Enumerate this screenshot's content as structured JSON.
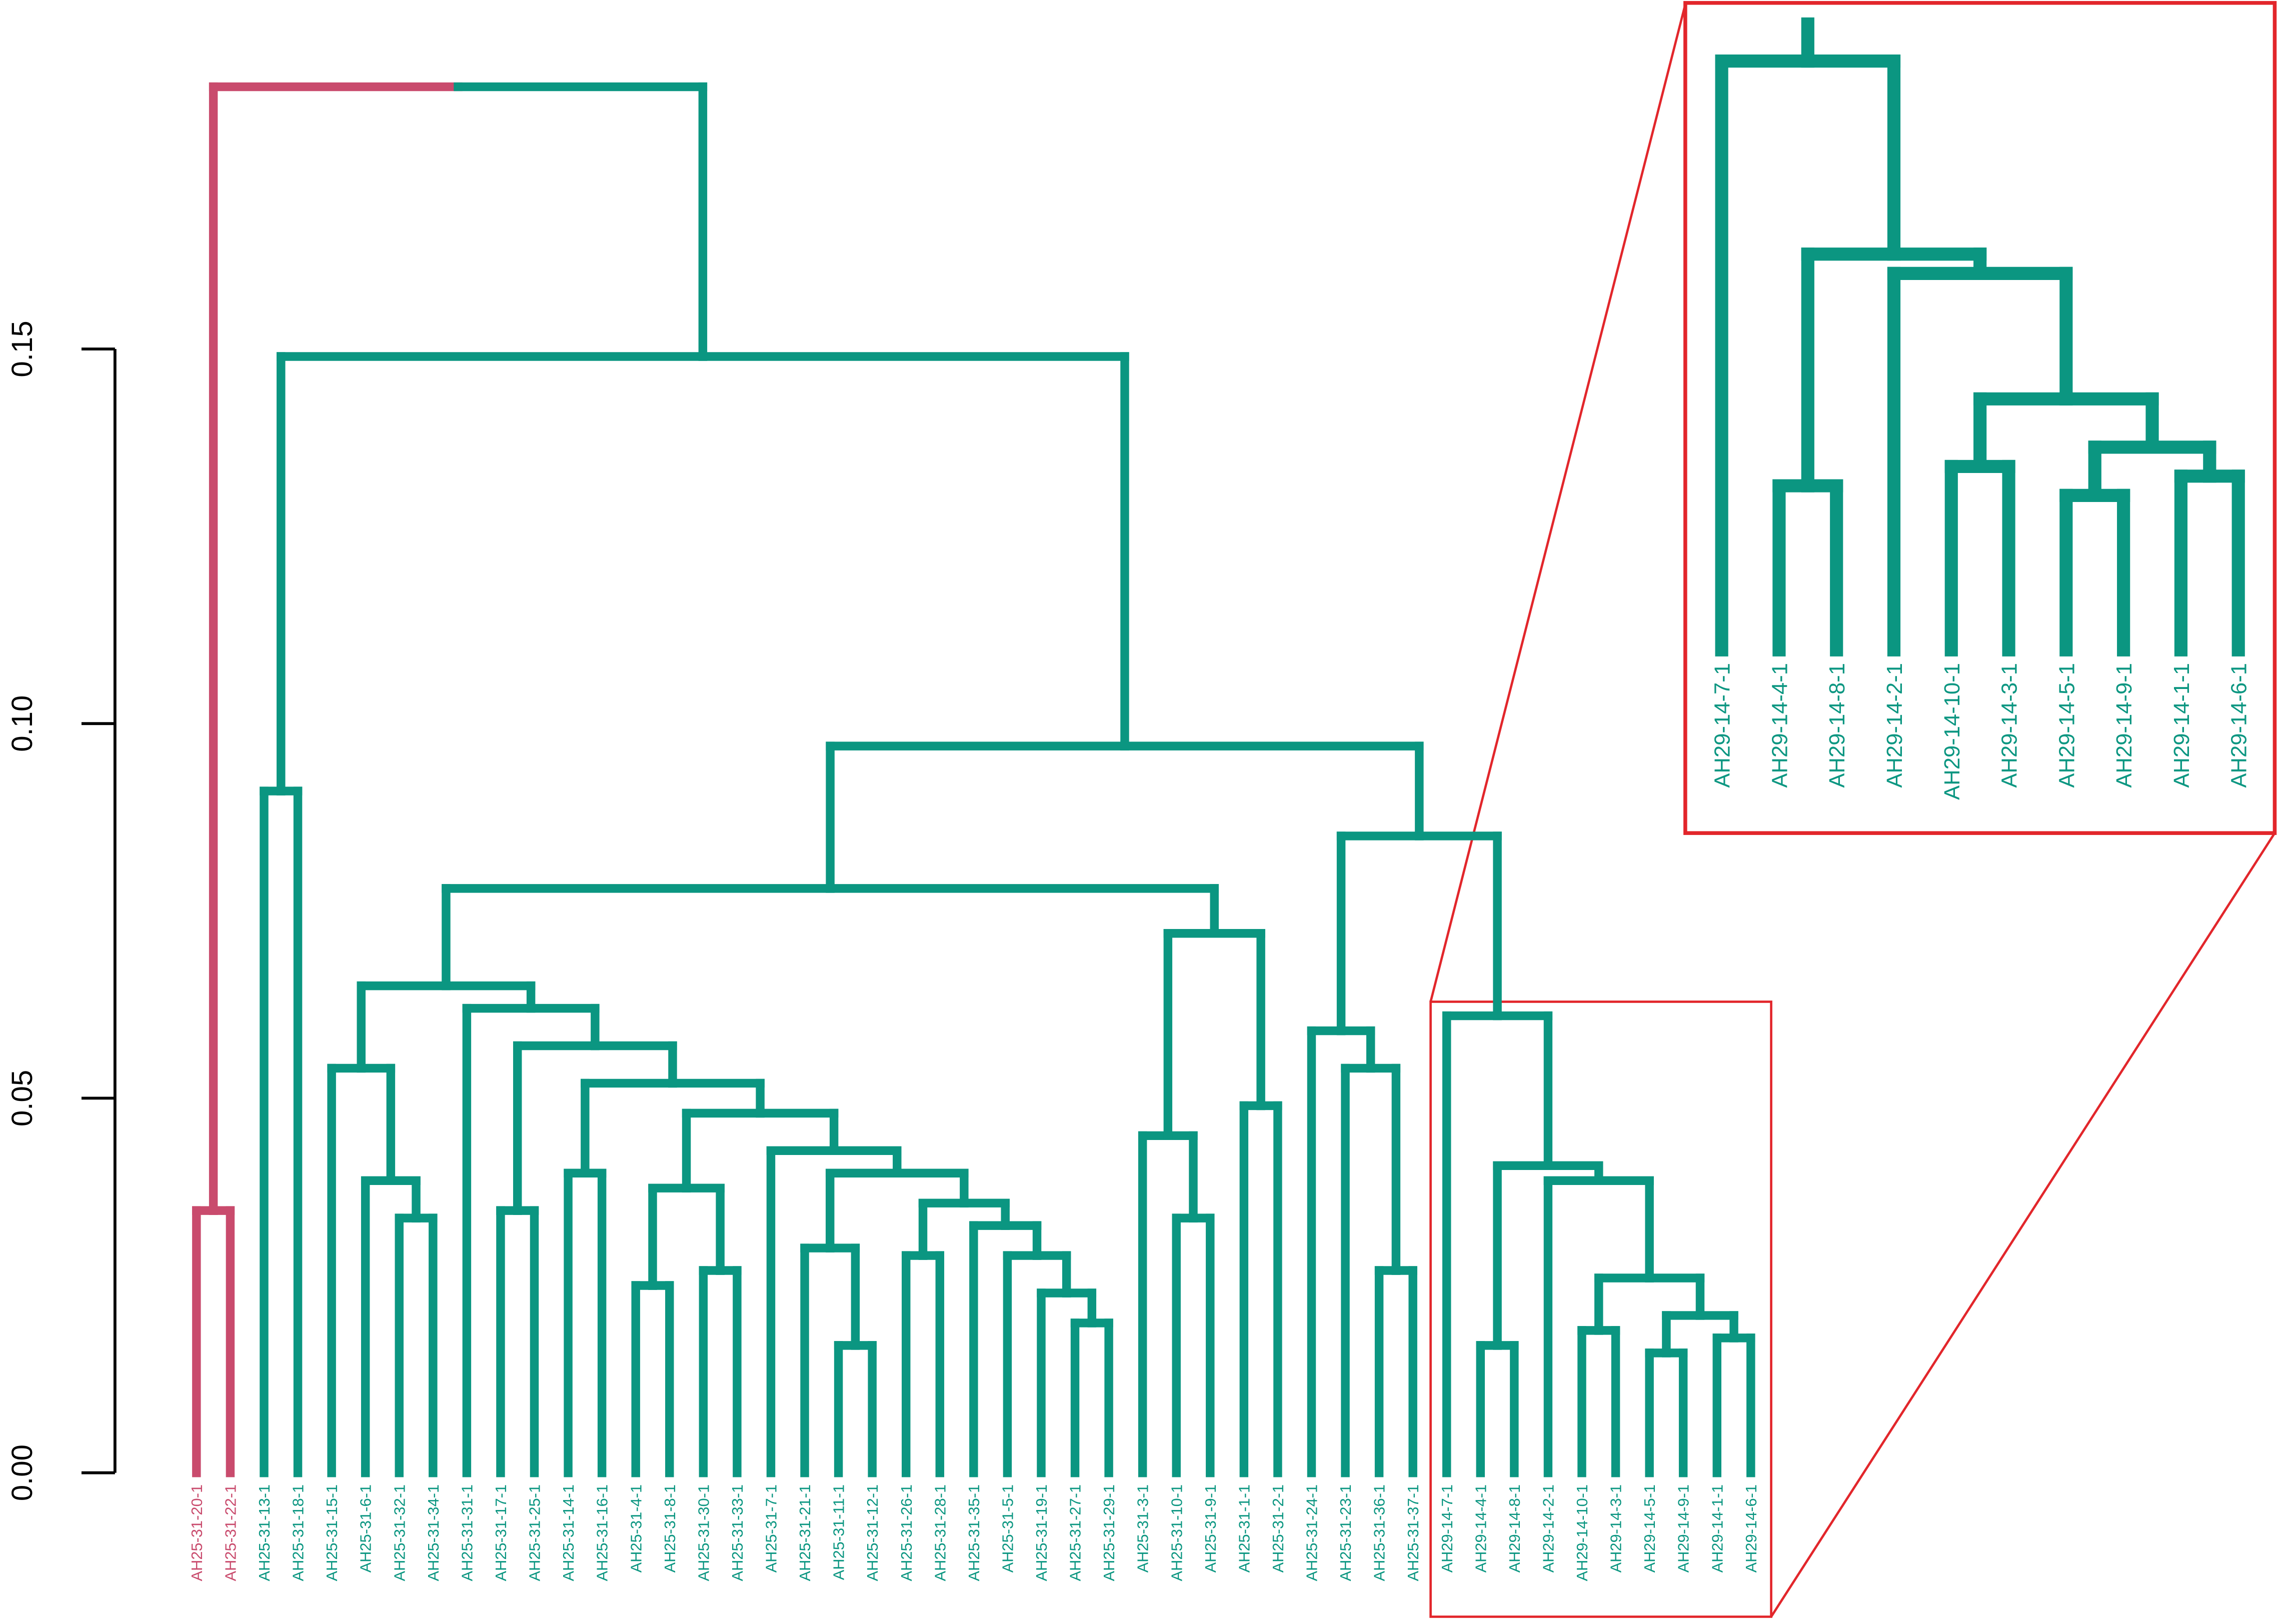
{
  "colors": {
    "cluster_1": "#c94b6d",
    "cluster_2": "#0b9681",
    "highlight": "#e2262b",
    "axis": "#000000"
  },
  "chart_data": {
    "type": "dendrogram",
    "y_axis": {
      "ticks": [
        0,
        0.05,
        0.1,
        0.15
      ],
      "tick_labels": [
        "0.00",
        "0.05",
        "0.10",
        "0.15"
      ],
      "range": [
        0,
        0.15
      ]
    },
    "tree": {
      "h": 0.185,
      "children": [
        {
          "h": 0.035,
          "cluster": 1,
          "children": [
            "AH25-31-20-1",
            "AH25-31-22-1"
          ]
        },
        {
          "h": 0.149,
          "cluster": 2,
          "children": [
            {
              "h": 0.091,
              "children": [
                "AH25-31-13-1",
                "AH25-31-18-1"
              ]
            },
            {
              "h": 0.097,
              "children": [
                {
                  "h": 0.078,
                  "children": [
                    {
                      "h": 0.065,
                      "children": [
                        {
                          "h": 0.054,
                          "children": [
                            "AH25-31-15-1",
                            {
                              "h": 0.039,
                              "children": [
                                "AH25-31-6-1",
                                {
                                  "h": 0.034,
                                  "children": [
                                    "AH25-31-32-1",
                                    "AH25-31-34-1"
                                  ]
                                }
                              ]
                            }
                          ]
                        },
                        {
                          "h": 0.062,
                          "children": [
                            "AH25-31-31-1",
                            {
                              "h": 0.057,
                              "children": [
                                {
                                  "h": 0.035,
                                  "children": [
                                    "AH25-31-17-1",
                                    "AH25-31-25-1"
                                  ]
                                },
                                {
                                  "h": 0.052,
                                  "children": [
                                    {
                                      "h": 0.04,
                                      "children": [
                                        "AH25-31-14-1",
                                        "AH25-31-16-1"
                                      ]
                                    },
                                    {
                                      "h": 0.048,
                                      "children": [
                                        {
                                          "h": 0.038,
                                          "children": [
                                            {
                                              "h": 0.025,
                                              "children": [
                                                "AH25-31-4-1",
                                                "AH25-31-8-1"
                                              ]
                                            },
                                            {
                                              "h": 0.027,
                                              "children": [
                                                "AH25-31-30-1",
                                                "AH25-31-33-1"
                                              ]
                                            }
                                          ]
                                        },
                                        {
                                          "h": 0.043,
                                          "children": [
                                            "AH25-31-7-1",
                                            {
                                              "h": 0.04,
                                              "children": [
                                                {
                                                  "h": 0.03,
                                                  "children": [
                                                    "AH25-31-21-1",
                                                    {
                                                      "h": 0.017,
                                                      "children": [
                                                        "AH25-31-11-1",
                                                        "AH25-31-12-1"
                                                      ]
                                                    }
                                                  ]
                                                },
                                                {
                                                  "h": 0.036,
                                                  "children": [
                                                    {
                                                      "h": 0.029,
                                                      "children": [
                                                        "AH25-31-26-1",
                                                        "AH25-31-28-1"
                                                      ]
                                                    },
                                                    {
                                                      "h": 0.033,
                                                      "children": [
                                                        "AH25-31-35-1",
                                                        {
                                                          "h": 0.029,
                                                          "children": [
                                                            "AH25-31-5-1",
                                                            {
                                                              "h": 0.024,
                                                              "children": [
                                                                "AH25-31-19-1",
                                                                {
                                                                  "h": 0.02,
                                                                  "children": [
                                                                    "AH25-31-27-1",
                                                                    "AH25-31-29-1"
                                                                  ]
                                                                }
                                                              ]
                                                            }
                                                          ]
                                                        }
                                                      ]
                                                    }
                                                  ]
                                                }
                                              ]
                                            }
                                          ]
                                        }
                                      ]
                                    }
                                  ]
                                }
                              ]
                            }
                          ]
                        }
                      ]
                    },
                    {
                      "h": 0.072,
                      "children": [
                        {
                          "h": 0.045,
                          "children": [
                            "AH25-31-3-1",
                            {
                              "h": 0.034,
                              "children": [
                                "AH25-31-10-1",
                                "AH25-31-9-1"
                              ]
                            }
                          ]
                        },
                        {
                          "h": 0.049,
                          "children": [
                            "AH25-31-1-1",
                            "AH25-31-2-1"
                          ]
                        }
                      ]
                    }
                  ]
                },
                {
                  "h": 0.085,
                  "children": [
                    {
                      "h": 0.059,
                      "children": [
                        "AH25-31-24-1",
                        {
                          "h": 0.054,
                          "children": [
                            "AH25-31-23-1",
                            {
                              "h": 0.027,
                              "children": [
                                "AH25-31-36-1",
                                "AH25-31-37-1"
                              ]
                            }
                          ]
                        }
                      ]
                    },
                    {
                      "h": 0.061,
                      "highlighted": true,
                      "children": [
                        "AH29-14-7-1",
                        {
                          "h": 0.041,
                          "children": [
                            {
                              "h": 0.017,
                              "children": [
                                "AH29-14-4-1",
                                "AH29-14-8-1"
                              ]
                            },
                            {
                              "h": 0.039,
                              "children": [
                                "AH29-14-2-1",
                                {
                                  "h": 0.026,
                                  "children": [
                                    {
                                      "h": 0.019,
                                      "children": [
                                        "AH29-14-10-1",
                                        "AH29-14-3-1"
                                      ]
                                    },
                                    {
                                      "h": 0.021,
                                      "children": [
                                        {
                                          "h": 0.016,
                                          "children": [
                                            "AH29-14-5-1",
                                            "AH29-14-9-1"
                                          ]
                                        },
                                        {
                                          "h": 0.018,
                                          "children": [
                                            "AH29-14-1-1",
                                            "AH29-14-6-1"
                                          ]
                                        }
                                      ]
                                    }
                                  ]
                                }
                              ]
                            }
                          ]
                        }
                      ]
                    }
                  ]
                }
              ]
            }
          ]
        }
      ]
    }
  }
}
